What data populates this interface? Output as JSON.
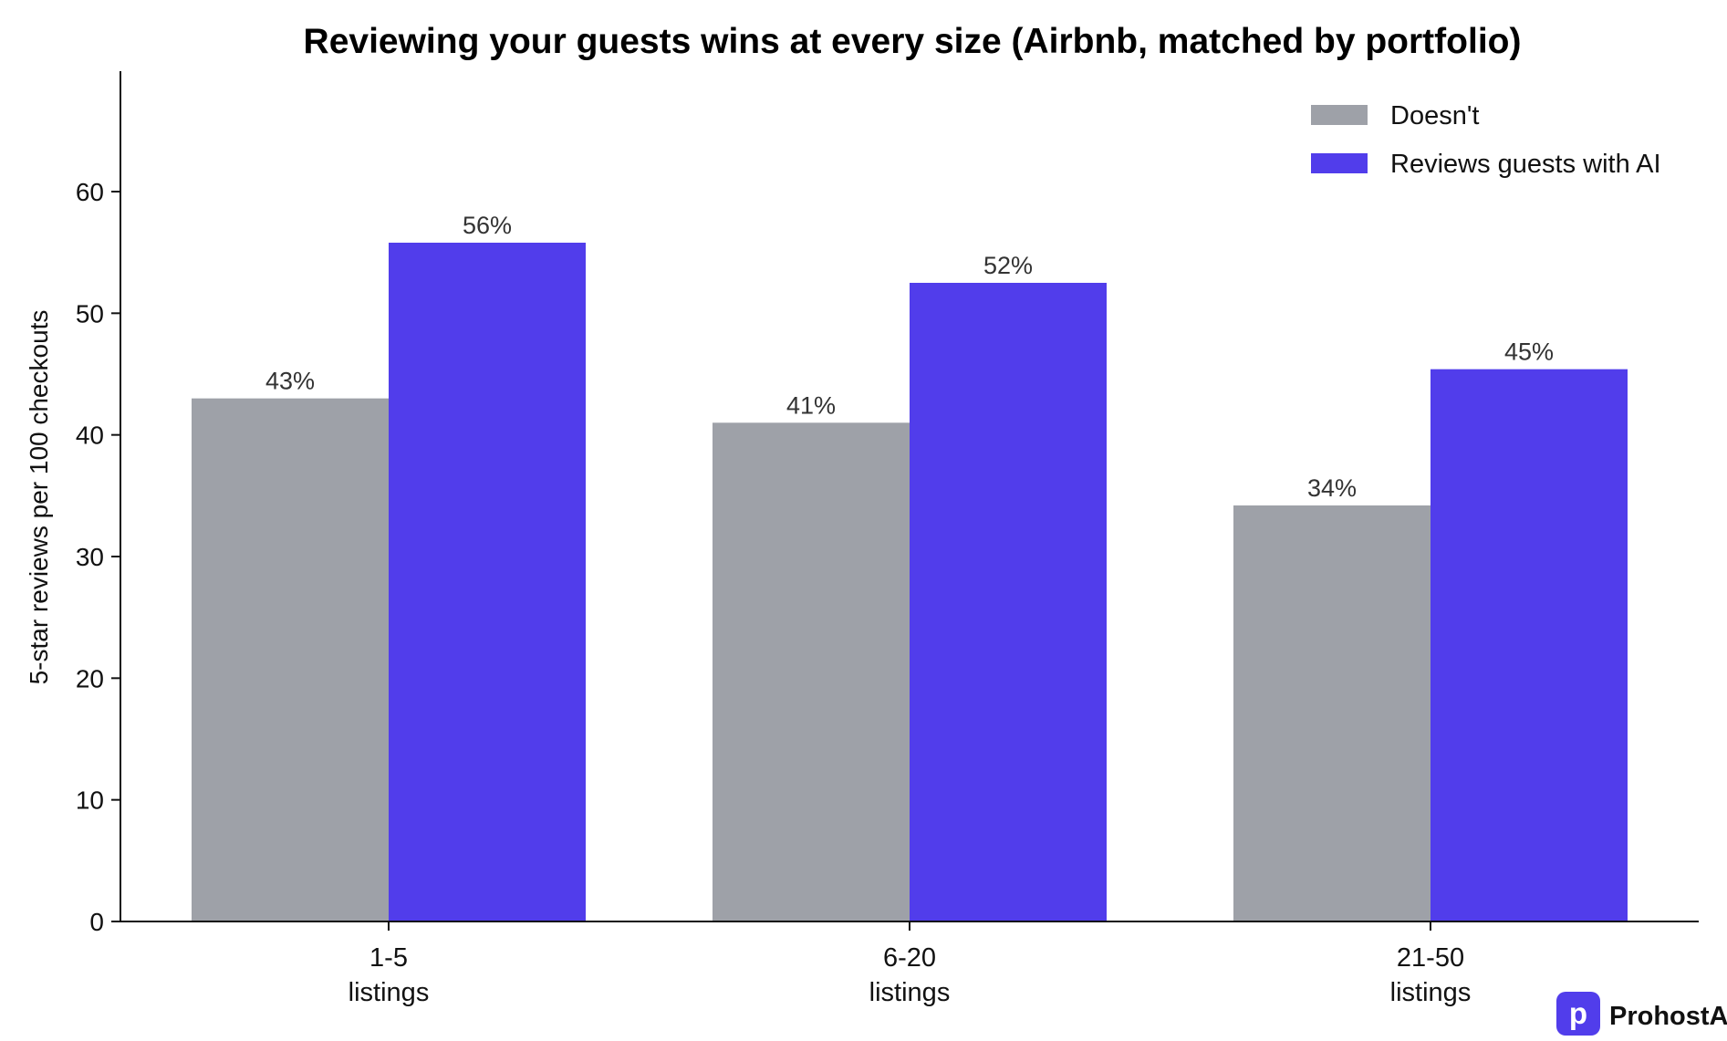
{
  "chart_data": {
    "type": "bar",
    "title": "Reviewing your guests wins at every size (Airbnb, matched by portfolio)",
    "ylabel": "5-star reviews per 100 checkouts",
    "xlabel": "",
    "categories": [
      {
        "line1": "1-5",
        "line2": "listings"
      },
      {
        "line1": "6-20",
        "line2": "listings"
      },
      {
        "line1": "21-50",
        "line2": "listings"
      }
    ],
    "series": [
      {
        "name": "Doesn't",
        "color": "#9ea1a8",
        "values": [
          43,
          41,
          34.2
        ],
        "labels": [
          "43%",
          "41%",
          "34%"
        ]
      },
      {
        "name": "Reviews guests with AI",
        "color": "#513deb",
        "values": [
          55.8,
          52.5,
          45.4
        ],
        "labels": [
          "56%",
          "52%",
          "45%"
        ]
      }
    ],
    "ylim": [
      0,
      70
    ],
    "yticks": [
      0,
      10,
      20,
      30,
      40,
      50,
      60
    ],
    "grid": false,
    "legend_position": "top-right"
  },
  "brand": {
    "name": "ProhostAI",
    "icon_letter": "p",
    "color": "#513deb"
  }
}
